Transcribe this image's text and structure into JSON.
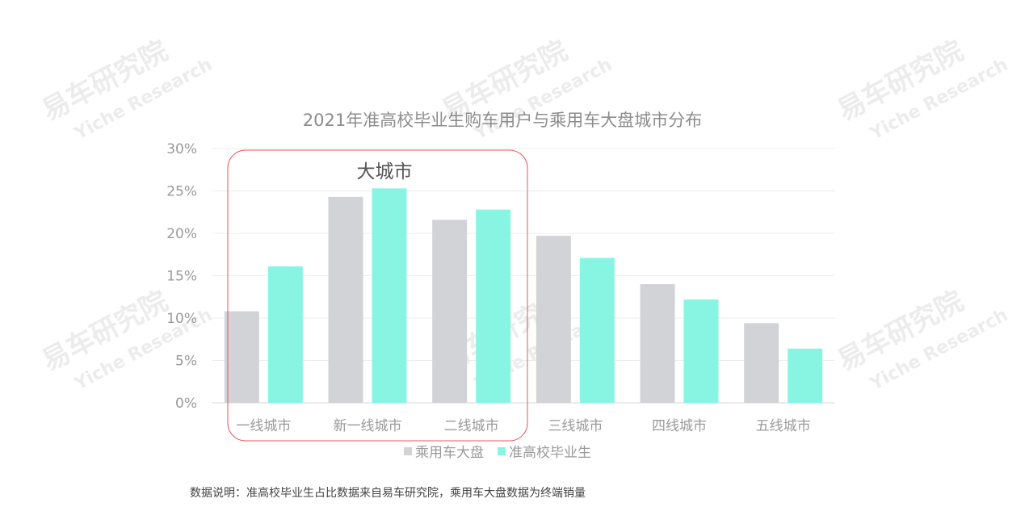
{
  "watermark": {
    "cn": "易车研究院",
    "en": "Yiche Research"
  },
  "note": "数据说明：准高校毕业生占比数据来自易车研究院，乘用车大盘数据为终端销量",
  "chart_data": {
    "type": "bar",
    "title": "2021年准高校毕业生购车用户与乘用车大盘城市分布",
    "categories": [
      "一线城市",
      "新一线城市",
      "二线城市",
      "三线城市",
      "四线城市",
      "五线城市"
    ],
    "series": [
      {
        "name": "乘用车大盘",
        "color": "#d1d3d6",
        "values": [
          10.8,
          24.3,
          21.6,
          19.7,
          14.0,
          9.4
        ]
      },
      {
        "name": "准高校毕业生",
        "color": "#88f5e3",
        "values": [
          16.1,
          25.3,
          22.8,
          17.1,
          12.2,
          6.4
        ]
      }
    ],
    "ylim": [
      0,
      30
    ],
    "yticks": [
      "0%",
      "5%",
      "10%",
      "15%",
      "20%",
      "25%",
      "30%"
    ],
    "ytick_values": [
      0,
      5,
      10,
      15,
      20,
      25,
      30
    ],
    "grid": true,
    "legend": "bottom",
    "annotation": {
      "text": "大城市",
      "highlight_color": "#e8545c",
      "spans_categories": [
        0,
        2
      ]
    }
  }
}
